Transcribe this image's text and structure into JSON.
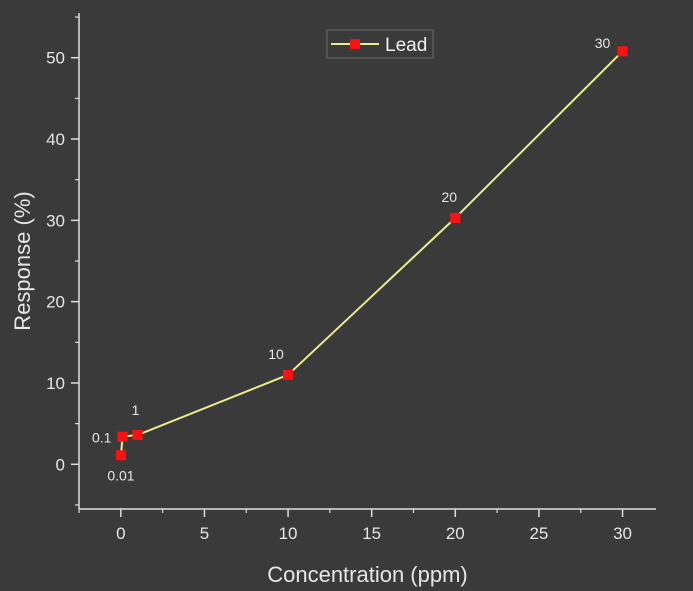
{
  "chart_data": {
    "type": "line",
    "xlabel": "Concentration (ppm)",
    "ylabel": "Response (%)",
    "xlim": [
      -2.5,
      32
    ],
    "ylim": [
      -5.5,
      55.5
    ],
    "xticks": [
      0,
      5,
      10,
      15,
      20,
      25,
      30
    ],
    "yticks": [
      0,
      10,
      20,
      30,
      40,
      50
    ],
    "grid": false,
    "legend_position": "top-center",
    "colors": {
      "line": "#ecec8c",
      "marker": "#ff1010",
      "axis": "#dcdcdc",
      "background": "#3a3a3a"
    },
    "series": [
      {
        "name": "Lead",
        "points": [
          {
            "x": 0.01,
            "y": 1.1,
            "label": "0.01"
          },
          {
            "x": 0.1,
            "y": 3.4,
            "label": "0.1"
          },
          {
            "x": 1,
            "y": 3.6,
            "label": "1"
          },
          {
            "x": 10,
            "y": 11.0,
            "label": "10"
          },
          {
            "x": 20,
            "y": 30.3,
            "label": "20"
          },
          {
            "x": 30,
            "y": 50.8,
            "label": "30"
          }
        ]
      }
    ]
  }
}
